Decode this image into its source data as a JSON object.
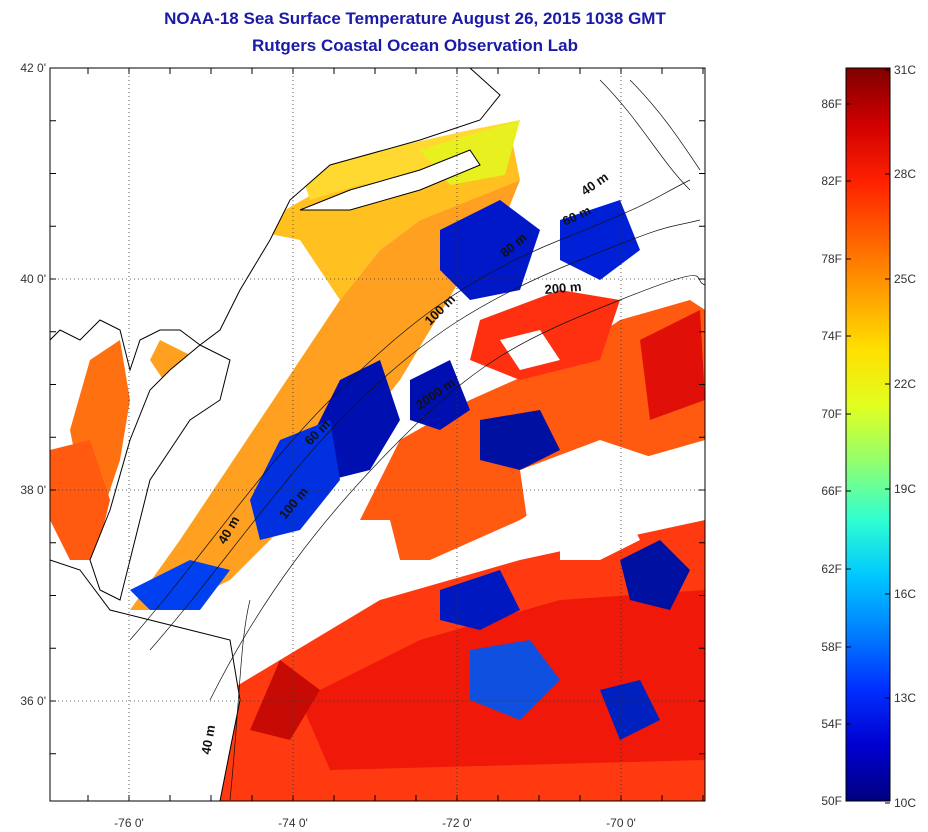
{
  "header": {
    "title": "NOAA-18 Sea Surface Temperature August 26, 2015 1038 GMT",
    "subtitle": "Rutgers Coastal Ocean Observation Lab"
  },
  "map": {
    "lat_ticks": [
      {
        "value": 42,
        "label": "42 0'"
      },
      {
        "value": 40,
        "label": "40 0'"
      },
      {
        "value": 38,
        "label": "38 0'"
      },
      {
        "value": 36,
        "label": "36 0'"
      }
    ],
    "lon_ticks": [
      {
        "value": -76,
        "label": "-76 0'"
      },
      {
        "value": -74,
        "label": "-74 0'"
      },
      {
        "value": -72,
        "label": "-72 0'"
      },
      {
        "value": -70,
        "label": "-70 0'"
      }
    ],
    "depth_labels": [
      "40 m",
      "60 m",
      "80 m",
      "200 m",
      "100 m",
      "2000 m",
      "60 m",
      "100 m",
      "40 m",
      "40 m"
    ]
  },
  "colorbar": {
    "fahrenheit_labels": [
      "86F",
      "82F",
      "78F",
      "74F",
      "70F",
      "66F",
      "62F",
      "58F",
      "54F",
      "50F"
    ],
    "celsius_labels": [
      "31C",
      "28C",
      "25C",
      "22C",
      "19C",
      "16C",
      "13C",
      "10C"
    ],
    "colors": [
      "#000080",
      "#0000d0",
      "#0030ff",
      "#0080ff",
      "#00c8ff",
      "#30ffd0",
      "#90ff70",
      "#e0ff20",
      "#ffe000",
      "#ffa000",
      "#ff6000",
      "#ff2000",
      "#d00000",
      "#800000"
    ]
  }
}
